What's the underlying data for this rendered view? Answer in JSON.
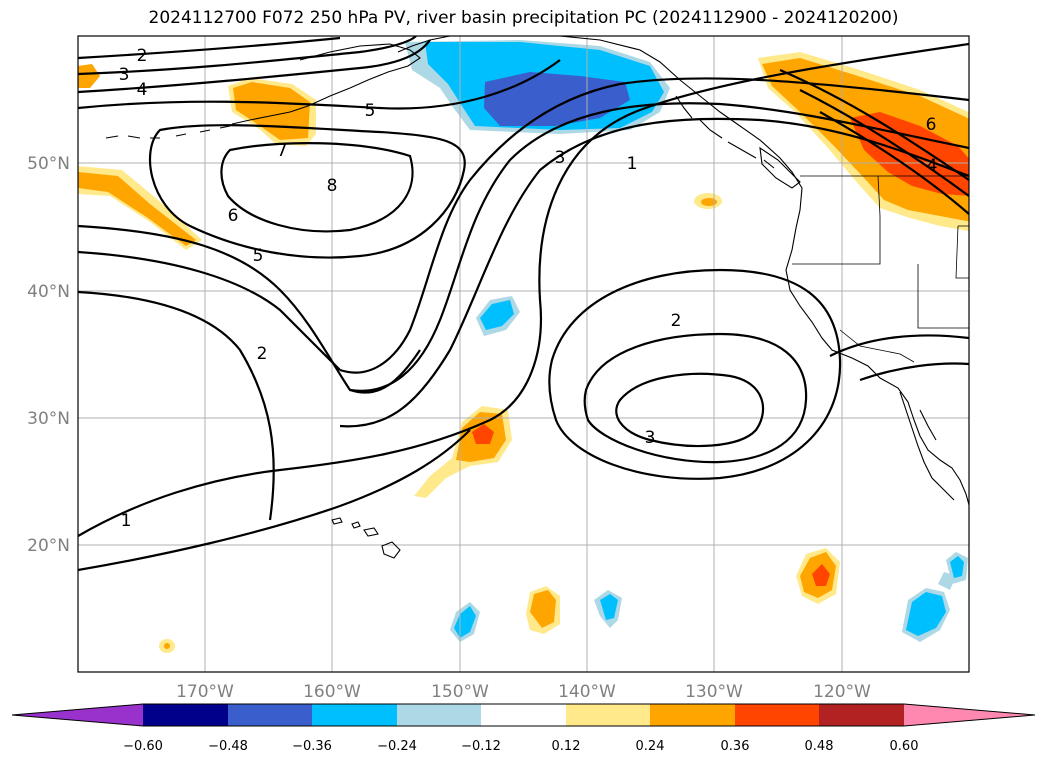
{
  "title": "2024112700 F072 250 hPa PV, river basin precipitation PC (2024112900 - 2024120200)",
  "lat_labels": [
    "50°N",
    "40°N",
    "30°N",
    "20°N"
  ],
  "lon_labels": [
    "170°W",
    "160°W",
    "150°W",
    "140°W",
    "130°W",
    "120°W"
  ],
  "contour_labels": [
    "2",
    "3",
    "4",
    "5",
    "7",
    "8",
    "6",
    "5",
    "2",
    "1",
    "3",
    "1",
    "2",
    "3",
    "6",
    "4"
  ],
  "colorbar": {
    "ticks": [
      "−0.60",
      "−0.48",
      "−0.36",
      "−0.24",
      "−0.12",
      "0.12",
      "0.24",
      "0.36",
      "0.48",
      "0.60"
    ],
    "colors": [
      "#9932CC",
      "#00008B",
      "#3A5FCD",
      "#00BFFF",
      "#ADD8E6",
      "#FFFFFF",
      "#FFE98A",
      "#FFA500",
      "#FF4500",
      "#B22222",
      "#FF88B0"
    ]
  },
  "shading_colors": {
    "light_blue": "#ADD8E6",
    "blue": "#00BFFF",
    "dark_blue": "#3A5FCD",
    "yellow": "#FFE98A",
    "orange": "#FFA500",
    "red": "#FF4500"
  }
}
